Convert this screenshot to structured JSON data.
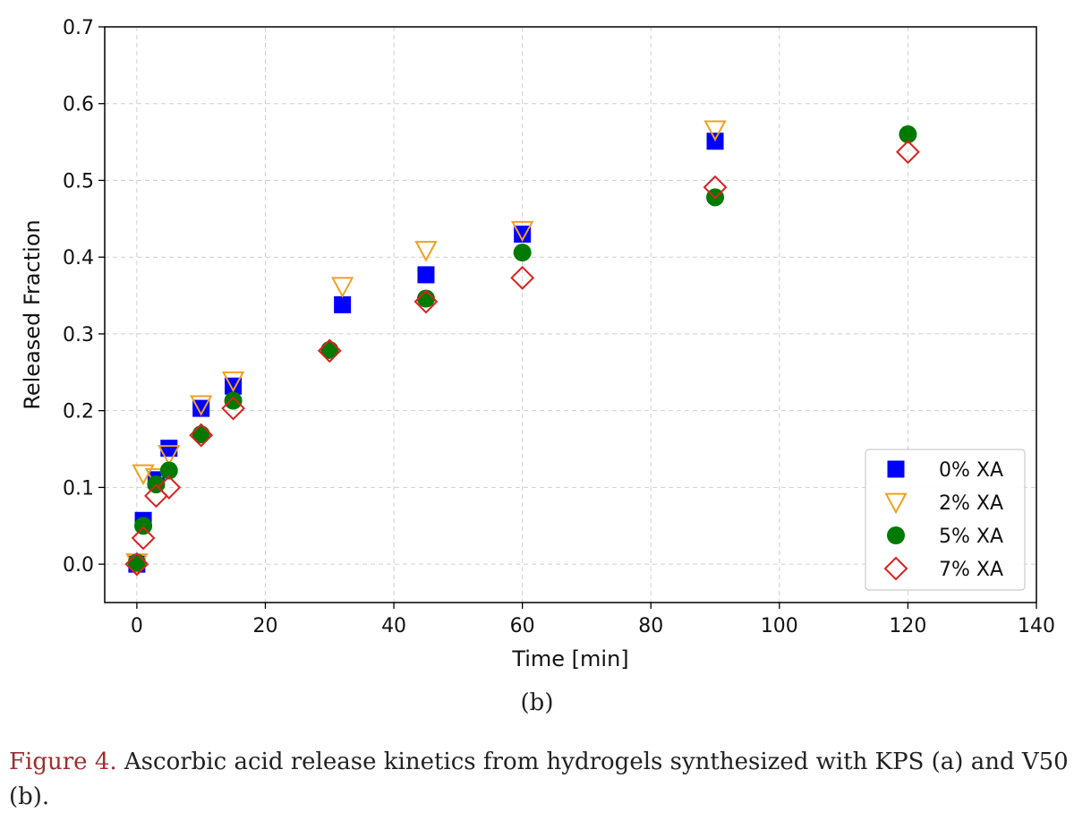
{
  "chart_data": {
    "type": "scatter",
    "title": "",
    "xlabel": "Time [min]",
    "ylabel": "Released Fraction",
    "xlim": [
      -5,
      140
    ],
    "ylim": [
      -0.05,
      0.7
    ],
    "xticks": [
      0,
      20,
      40,
      60,
      80,
      100,
      120,
      140
    ],
    "yticks": [
      0.0,
      0.1,
      0.2,
      0.3,
      0.4,
      0.5,
      0.6,
      0.7
    ],
    "xtick_labels": [
      "0",
      "20",
      "40",
      "60",
      "80",
      "100",
      "120",
      "140"
    ],
    "ytick_labels": [
      "0.0",
      "0.1",
      "0.2",
      "0.3",
      "0.4",
      "0.5",
      "0.6",
      "0.7"
    ],
    "grid": true,
    "legend_position": "bottom-right",
    "series": [
      {
        "name": "0% XA",
        "marker": "square",
        "color": "#0000ff",
        "filled": true,
        "x": [
          0,
          1,
          3,
          5,
          10,
          15,
          32,
          45,
          60,
          90
        ],
        "y": [
          0.0,
          0.057,
          0.11,
          0.151,
          0.203,
          0.232,
          0.338,
          0.377,
          0.43,
          0.551
        ]
      },
      {
        "name": "2% XA",
        "marker": "triangle-down",
        "color": "#f0a020",
        "filled": false,
        "x": [
          0,
          1,
          3,
          5,
          10,
          15,
          32,
          45,
          60,
          90
        ],
        "y": [
          0.002,
          0.118,
          0.113,
          0.143,
          0.208,
          0.239,
          0.362,
          0.409,
          0.435,
          0.566
        ]
      },
      {
        "name": "5% XA",
        "marker": "circle",
        "color": "#007a00",
        "filled": true,
        "x": [
          0,
          1,
          3,
          5,
          10,
          15,
          30,
          45,
          60,
          90,
          120
        ],
        "y": [
          0.002,
          0.05,
          0.104,
          0.122,
          0.169,
          0.213,
          0.279,
          0.346,
          0.406,
          0.478,
          0.56
        ]
      },
      {
        "name": "7% XA",
        "marker": "diamond",
        "color": "#dd2020",
        "filled": false,
        "x": [
          0,
          1,
          3,
          5,
          10,
          15,
          30,
          45,
          60,
          90,
          120
        ],
        "y": [
          0.0,
          0.034,
          0.089,
          0.1,
          0.168,
          0.203,
          0.278,
          0.342,
          0.373,
          0.491,
          0.537
        ]
      }
    ]
  },
  "figure": {
    "sublabel": "(b)",
    "caption_label": "Figure 4.",
    "caption_text": " Ascorbic acid release kinetics from hydrogels synthesized with KPS (a) and V50 (b)."
  }
}
